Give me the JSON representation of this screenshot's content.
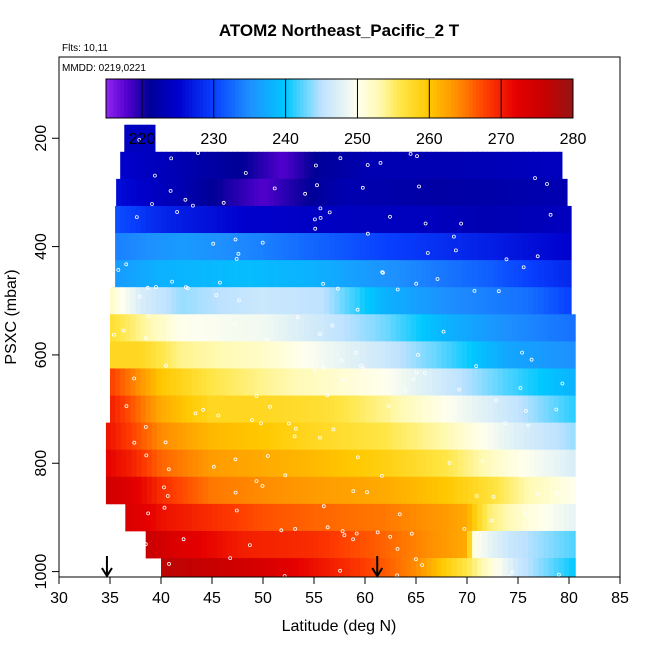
{
  "chart_data": {
    "type": "heatmap",
    "title": "ATOM2 Northeast_Pacific_2 T",
    "annotations": [
      "Flts: 10,11",
      "MMDD: 0219,0221"
    ],
    "xlabel": "Latitude (deg N)",
    "ylabel": "PSXC (mbar)",
    "xlim": [
      30,
      85
    ],
    "ylim": [
      1010,
      50
    ],
    "y_reversed": true,
    "xticks": [
      "30",
      "35",
      "40",
      "45",
      "50",
      "55",
      "60",
      "65",
      "70",
      "75",
      "80",
      "85"
    ],
    "yticks": [
      "200",
      "400",
      "600",
      "800",
      "1000"
    ],
    "colorbar": {
      "range": [
        215,
        280
      ],
      "ticks": [
        "220",
        "230",
        "240",
        "250",
        "260",
        "270",
        "280"
      ],
      "placement": "top-inside"
    },
    "arrows": [
      34.7,
      61.2
    ],
    "pressure_bins": [
      {
        "p_top": 175,
        "p_bot": 225,
        "lat_start": 36.4,
        "lat_end": 39.4,
        "profile": [
          [
            36.4,
            224
          ],
          [
            39.4,
            224
          ]
        ]
      },
      {
        "p_top": 225,
        "p_bot": 275,
        "lat_start": 36.0,
        "lat_end": 79.3,
        "profile": [
          [
            36.0,
            225
          ],
          [
            42.0,
            223
          ],
          [
            48.0,
            221
          ],
          [
            52.0,
            218
          ],
          [
            55.0,
            221
          ],
          [
            60.0,
            223
          ],
          [
            68.0,
            223
          ],
          [
            79.3,
            224
          ]
        ]
      },
      {
        "p_top": 275,
        "p_bot": 325,
        "lat_start": 35.6,
        "lat_end": 79.8,
        "profile": [
          [
            35.6,
            226
          ],
          [
            42.0,
            223
          ],
          [
            50.0,
            218
          ],
          [
            53.0,
            220
          ],
          [
            58.0,
            223
          ],
          [
            67.0,
            222
          ],
          [
            79.8,
            223
          ]
        ]
      },
      {
        "p_top": 325,
        "p_bot": 375,
        "lat_start": 35.5,
        "lat_end": 80.2,
        "profile": [
          [
            35.5,
            231
          ],
          [
            40.0,
            228
          ],
          [
            48.0,
            225
          ],
          [
            58.0,
            224
          ],
          [
            66.0,
            224
          ],
          [
            72.0,
            223
          ],
          [
            80.2,
            224
          ]
        ]
      },
      {
        "p_top": 375,
        "p_bot": 425,
        "lat_start": 35.5,
        "lat_end": 80.2,
        "profile": [
          [
            35.5,
            234
          ],
          [
            42.0,
            236
          ],
          [
            50.0,
            234
          ],
          [
            56.0,
            232
          ],
          [
            62.0,
            230
          ],
          [
            70.0,
            228
          ],
          [
            80.2,
            225
          ]
        ]
      },
      {
        "p_top": 425,
        "p_bot": 475,
        "lat_start": 35.5,
        "lat_end": 80.2,
        "profile": [
          [
            35.5,
            236
          ],
          [
            40.0,
            238
          ],
          [
            48.0,
            239
          ],
          [
            55.0,
            238
          ],
          [
            60.0,
            236
          ],
          [
            66.0,
            234
          ],
          [
            72.0,
            232
          ],
          [
            80.2,
            228
          ]
        ]
      },
      {
        "p_top": 475,
        "p_bot": 525,
        "lat_start": 35.0,
        "lat_end": 80.2,
        "profile": [
          [
            35.0,
            252
          ],
          [
            38.0,
            247
          ],
          [
            42.0,
            244
          ],
          [
            50.0,
            246
          ],
          [
            56.0,
            245
          ],
          [
            62.0,
            238
          ],
          [
            68.0,
            235
          ],
          [
            76.0,
            233
          ],
          [
            80.2,
            230
          ]
        ]
      },
      {
        "p_top": 525,
        "p_bot": 575,
        "lat_start": 35.0,
        "lat_end": 80.6,
        "profile": [
          [
            35.0,
            257
          ],
          [
            38.0,
            254
          ],
          [
            42.0,
            250
          ],
          [
            50.0,
            249
          ],
          [
            56.0,
            246
          ],
          [
            62.0,
            243
          ],
          [
            68.0,
            238
          ],
          [
            74.0,
            235
          ],
          [
            80.6,
            233
          ]
        ]
      },
      {
        "p_top": 575,
        "p_bot": 625,
        "lat_start": 35.0,
        "lat_end": 80.6,
        "profile": [
          [
            35.0,
            258
          ],
          [
            38.0,
            258
          ],
          [
            42.0,
            254
          ],
          [
            50.0,
            252
          ],
          [
            56.0,
            249
          ],
          [
            62.0,
            246
          ],
          [
            68.0,
            242
          ],
          [
            74.0,
            237
          ],
          [
            80.6,
            235
          ]
        ]
      },
      {
        "p_top": 625,
        "p_bot": 675,
        "lat_start": 35.0,
        "lat_end": 80.6,
        "profile": [
          [
            35.0,
            268
          ],
          [
            37.0,
            265
          ],
          [
            40.0,
            260
          ],
          [
            45.0,
            256
          ],
          [
            50.0,
            254
          ],
          [
            56.0,
            252
          ],
          [
            62.0,
            250
          ],
          [
            68.0,
            246
          ],
          [
            74.0,
            242
          ],
          [
            80.6,
            238
          ]
        ]
      },
      {
        "p_top": 675,
        "p_bot": 725,
        "lat_start": 35.0,
        "lat_end": 80.6,
        "profile": [
          [
            35.0,
            270
          ],
          [
            37.0,
            267
          ],
          [
            40.0,
            262
          ],
          [
            45.0,
            258
          ],
          [
            50.0,
            258
          ],
          [
            56.0,
            257
          ],
          [
            62.0,
            254
          ],
          [
            68.0,
            250
          ],
          [
            74.0,
            246
          ],
          [
            80.6,
            241
          ]
        ]
      },
      {
        "p_top": 725,
        "p_bot": 775,
        "lat_start": 34.6,
        "lat_end": 80.6,
        "profile": [
          [
            34.6,
            271
          ],
          [
            37.0,
            268
          ],
          [
            40.0,
            264
          ],
          [
            45.0,
            261
          ],
          [
            50.0,
            260
          ],
          [
            55.0,
            258
          ],
          [
            62.0,
            256
          ],
          [
            68.0,
            253
          ],
          [
            74.0,
            248
          ],
          [
            80.6,
            244
          ]
        ]
      },
      {
        "p_top": 775,
        "p_bot": 825,
        "lat_start": 34.6,
        "lat_end": 80.6,
        "profile": [
          [
            34.6,
            272
          ],
          [
            37.0,
            270
          ],
          [
            40.0,
            266
          ],
          [
            45.0,
            263
          ],
          [
            50.0,
            262
          ],
          [
            55.0,
            261
          ],
          [
            62.0,
            259
          ],
          [
            68.0,
            256
          ],
          [
            74.0,
            251
          ],
          [
            80.6,
            247
          ]
        ]
      },
      {
        "p_top": 825,
        "p_bot": 875,
        "lat_start": 34.6,
        "lat_end": 80.6,
        "profile": [
          [
            34.6,
            275
          ],
          [
            37.0,
            273
          ],
          [
            40.0,
            269
          ],
          [
            45.0,
            265
          ],
          [
            50.0,
            264
          ],
          [
            55.0,
            263
          ],
          [
            62.0,
            262
          ],
          [
            68.0,
            260
          ],
          [
            72.0,
            257
          ],
          [
            76.0,
            253
          ],
          [
            80.6,
            250
          ]
        ]
      },
      {
        "p_top": 875,
        "p_bot": 925,
        "lat_start": 36.5,
        "lat_end": 80.6,
        "profile": [
          [
            36.5,
            274
          ],
          [
            40.0,
            271
          ],
          [
            45.0,
            269
          ],
          [
            50.0,
            267
          ],
          [
            55.0,
            266
          ],
          [
            62.0,
            265
          ],
          [
            68.0,
            263
          ],
          [
            70.0,
            262
          ],
          [
            72.0,
            255
          ],
          [
            76.0,
            251
          ],
          [
            80.6,
            248
          ]
        ]
      },
      {
        "p_top": 925,
        "p_bot": 975,
        "lat_start": 38.5,
        "lat_end": 80.6,
        "profile": [
          [
            38.5,
            276
          ],
          [
            42.0,
            273
          ],
          [
            48.0,
            270
          ],
          [
            55.0,
            269
          ],
          [
            62.0,
            266
          ],
          [
            68.0,
            263
          ],
          [
            70.0,
            262
          ],
          [
            70.8,
            250
          ],
          [
            74.0,
            246
          ],
          [
            80.6,
            242
          ]
        ]
      },
      {
        "p_top": 975,
        "p_bot": 1010,
        "lat_start": 40.0,
        "lat_end": 80.6,
        "profile": [
          [
            40.0,
            277
          ],
          [
            45.0,
            276
          ],
          [
            50.0,
            274
          ],
          [
            55.0,
            271
          ],
          [
            60.0,
            268
          ],
          [
            65.0,
            264
          ],
          [
            70.0,
            256
          ],
          [
            75.0,
            246
          ],
          [
            80.6,
            240
          ]
        ]
      }
    ]
  }
}
